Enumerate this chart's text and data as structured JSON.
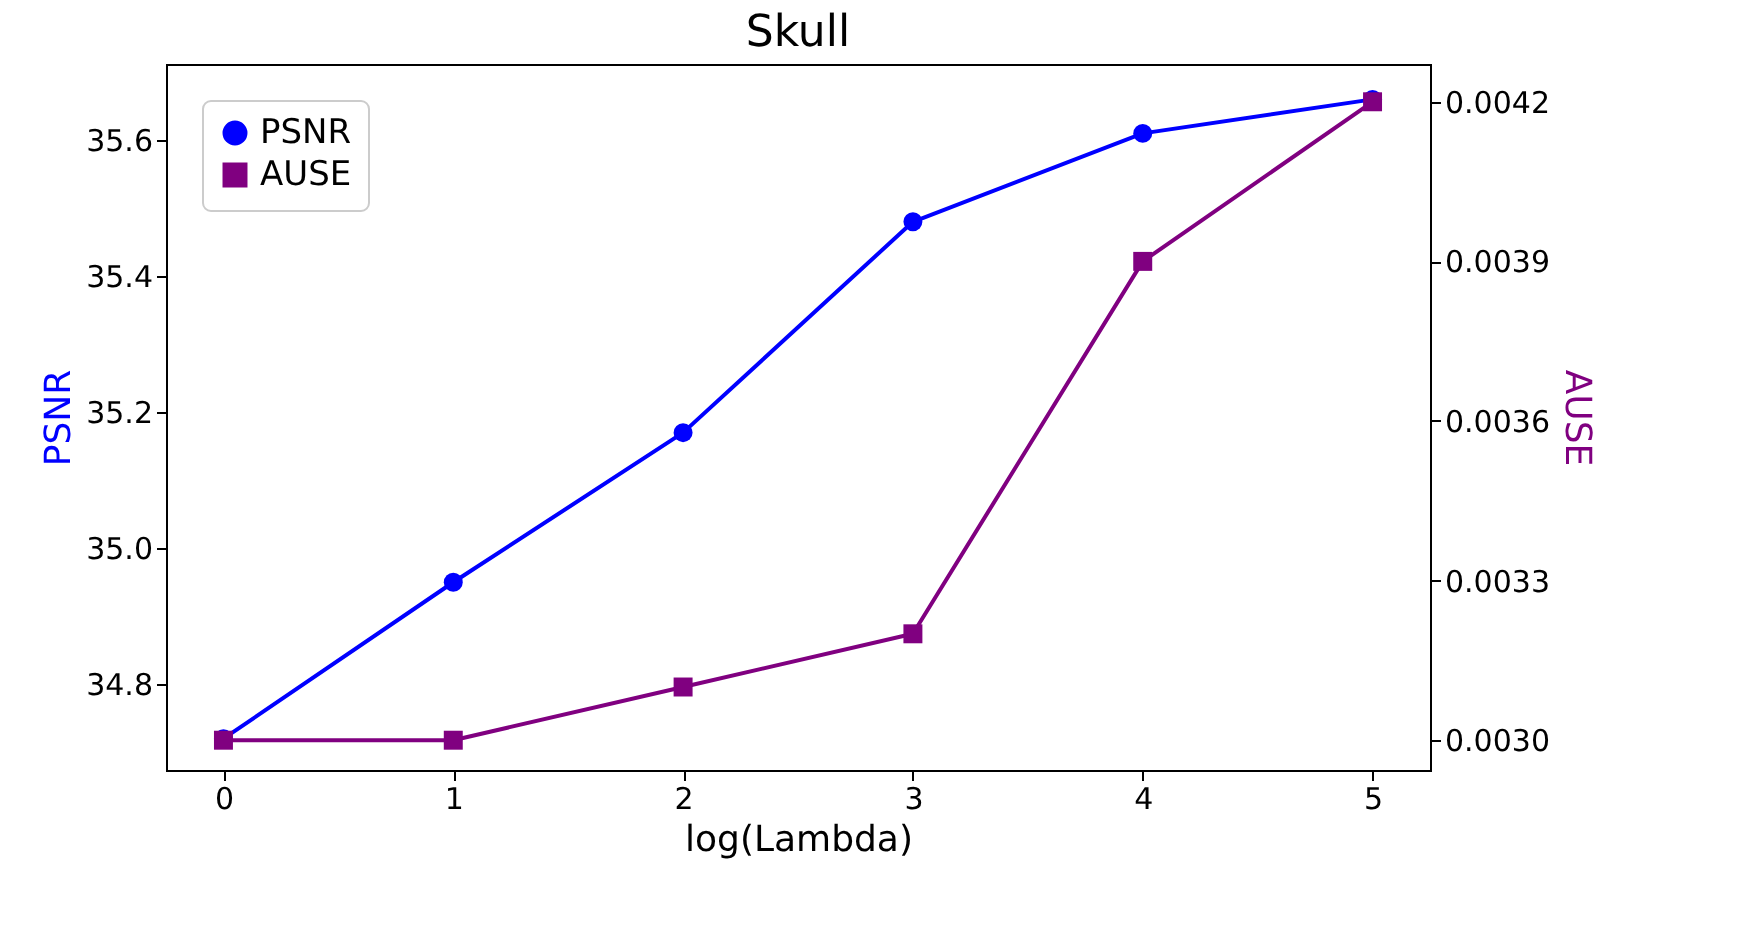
{
  "chart_data": {
    "type": "line",
    "title": "Skull",
    "xlabel": "log(Lambda)",
    "ylabel": "PSNR",
    "y2label": "AUSE",
    "x": [
      0,
      1,
      2,
      3,
      4,
      5
    ],
    "xlim": [
      -0.25,
      5.25
    ],
    "xticks": [
      0,
      1,
      2,
      3,
      4,
      5
    ],
    "ylim": [
      34.674,
      35.712
    ],
    "yticks": [
      34.8,
      {
        "value": 35,
        "label": "35.0"
      },
      35.2,
      35.4,
      35.6
    ],
    "y2lim": [
      0.002944,
      0.004271
    ],
    "y2ticks": [
      {
        "value": 0.003,
        "label": "0.0030"
      },
      0.0033,
      0.0036,
      0.0039,
      0.0042
    ],
    "series": [
      {
        "name": "PSNR",
        "color": "#0000ff",
        "marker": "circle",
        "values": [
          34.72,
          34.95,
          35.17,
          35.48,
          35.61,
          35.66
        ]
      },
      {
        "name": "AUSE",
        "color": "#800080",
        "marker": "square",
        "axis": "y2",
        "values": [
          0.003,
          0.003,
          0.0031,
          0.0032,
          0.0039,
          0.0042
        ]
      }
    ],
    "grid": false,
    "legend": "top left",
    "line_style": "solid"
  }
}
